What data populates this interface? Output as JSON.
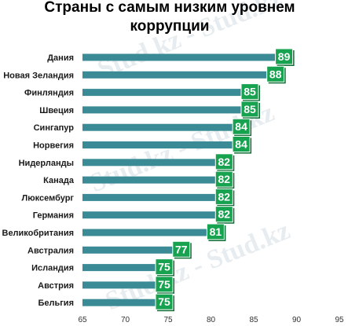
{
  "watermark_text": "Stud.kz - Stud.kz",
  "colors": {
    "bar": "#3b8b96",
    "bar_dark": "#2c6e78",
    "label_box": "#17a24f",
    "label_box_shadow": "#0d6d33"
  },
  "chart_data": {
    "type": "bar",
    "orientation": "horizontal",
    "title_lines": [
      "Страны с самым низким уровнем",
      "коррупции"
    ],
    "categories": [
      "Дания",
      "Новая Зеландия",
      "Финляндия",
      "Швеция",
      "Сингапур",
      "Норвегия",
      "Нидерланды",
      "Канада",
      "Люксембург",
      "Германия",
      "Великобритания",
      "Австралия",
      "Исландия",
      "Австрия",
      "Бельгия"
    ],
    "values": [
      89,
      88,
      85,
      85,
      84,
      84,
      82,
      82,
      82,
      82,
      81,
      77,
      75,
      75,
      75
    ],
    "xlim": [
      65,
      95
    ],
    "xticks": [
      65,
      70,
      75,
      80,
      85,
      90,
      95
    ],
    "grid": false,
    "legend": "none"
  }
}
